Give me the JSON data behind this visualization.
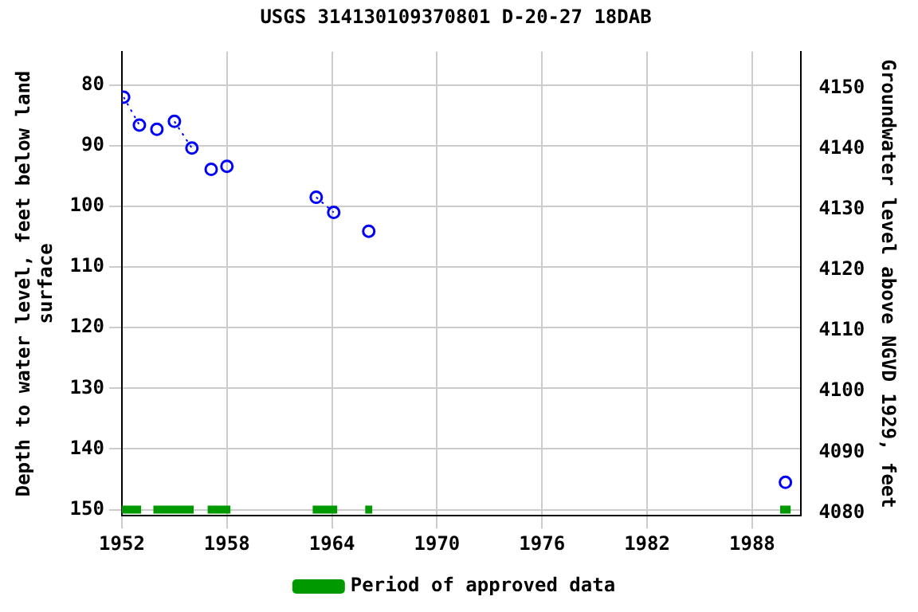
{
  "chart_data": {
    "type": "line",
    "title": "USGS 314130109370801 D-20-27 18DAB",
    "ylabel": "Depth to water level, feet below land surface",
    "y2label": "Groundwater level above NGVD 1929, feet",
    "xlim": [
      1952,
      1990.8
    ],
    "xticks": [
      1952,
      1958,
      1964,
      1970,
      1976,
      1982,
      1988
    ],
    "ylim": [
      151,
      74.5
    ],
    "yticks": [
      80,
      90,
      100,
      110,
      120,
      130,
      140,
      150
    ],
    "y2lim": [
      4079.5,
      4156
    ],
    "y2ticks": [
      4080,
      4090,
      4100,
      4110,
      4120,
      4130,
      4140,
      4150
    ],
    "grid": true,
    "legend": "bottom",
    "series": [
      {
        "color": "#0000ff",
        "marker": "circle",
        "line_style": "dotted",
        "x": [
          1952.1,
          1953.0,
          1953.5,
          1954.0,
          1954.5,
          1955.0,
          1956.0,
          1956.5,
          1957.1,
          1957.5,
          1958.0,
          1960,
          1963.1,
          1964.1,
          1965,
          1966.1,
          1970,
          1989.9
        ],
        "values": [
          82.0,
          86.6,
          null,
          87.3,
          null,
          86.0,
          90.4,
          null,
          93.9,
          null,
          93.4,
          null,
          98.5,
          101.0,
          null,
          104.1,
          null,
          145.5
        ]
      },
      {
        "type": "line",
        "name": "Period of approved data",
        "color": "#009900",
        "marker": "none",
        "line_style": "solid",
        "x": [
          1952,
          1953.1,
          1953.4,
          1953.8,
          1956.1,
          1956.5,
          1956.9,
          1958.2,
          1960,
          1962.9,
          1964.3,
          1965,
          1965.9,
          1966.3,
          1978,
          1989.6,
          1990.2
        ],
        "values": [
          150,
          150,
          null,
          150,
          150,
          null,
          150,
          150,
          null,
          150,
          150,
          null,
          150,
          150,
          null,
          150,
          150
        ]
      }
    ]
  }
}
